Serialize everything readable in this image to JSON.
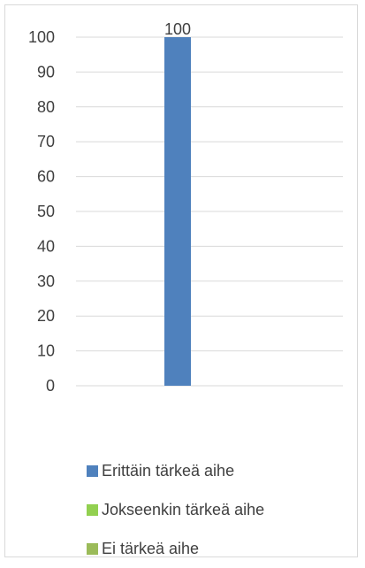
{
  "chart_data": {
    "type": "bar",
    "categories": [
      ""
    ],
    "series": [
      {
        "name": "Erittäin tärkeä aihe",
        "values": [
          100
        ],
        "color": "#4f81bd"
      },
      {
        "name": "Jokseenkin tärkeä aihe",
        "values": [
          0
        ],
        "color": "#92d050"
      },
      {
        "name": "Ei tärkeä aihe",
        "values": [
          0
        ],
        "color": "#9bbb59"
      }
    ],
    "data_labels": [
      "100"
    ],
    "title": "",
    "xlabel": "",
    "ylabel": "",
    "ylim": [
      0,
      100
    ],
    "yticks": [
      "0",
      "10",
      "20",
      "30",
      "40",
      "50",
      "60",
      "70",
      "80",
      "90",
      "100"
    ],
    "grid": true,
    "legend_position": "bottom"
  }
}
